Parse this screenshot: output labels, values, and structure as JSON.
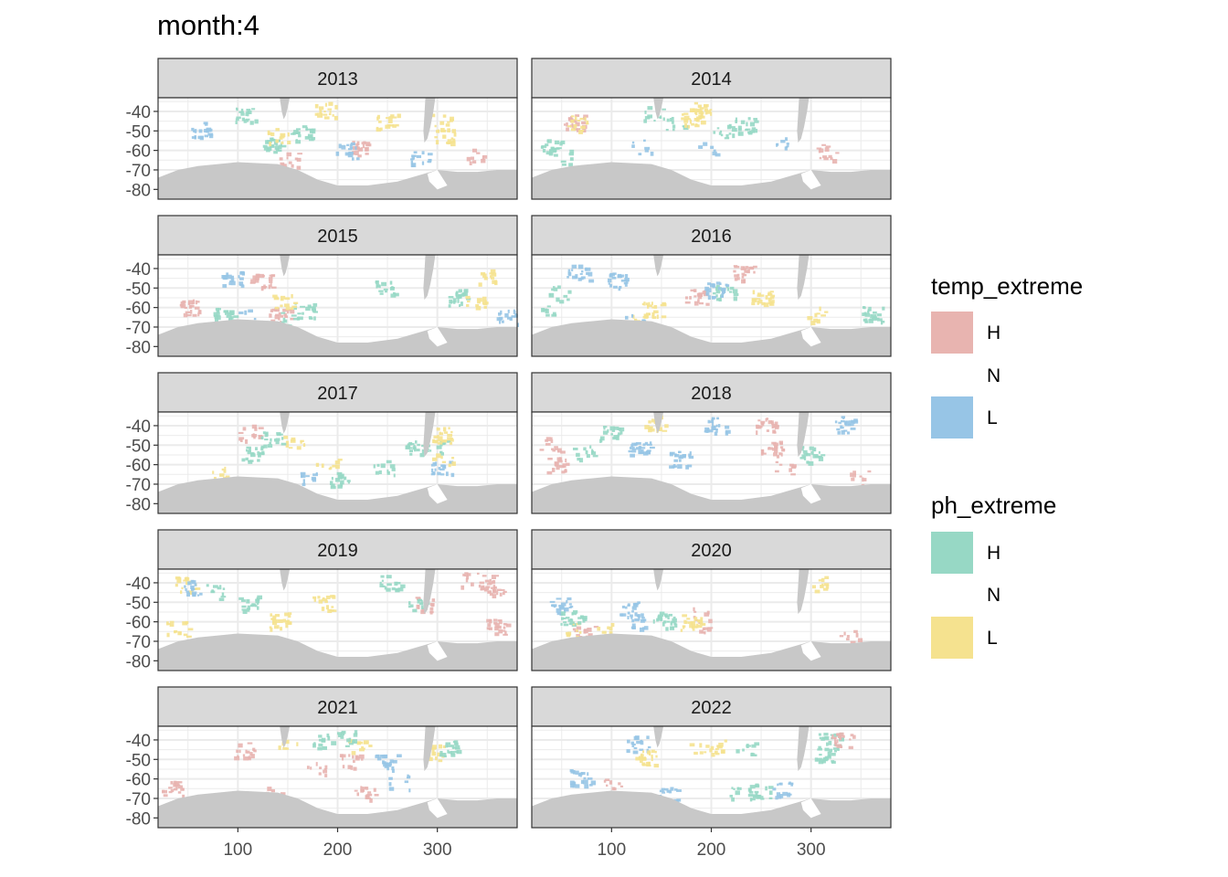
{
  "title": "month:4",
  "chart_data": {
    "type": "heatmap",
    "description_of_marks": "faceted maps of Southern Ocean; colored tiles mark temp/pH extremes",
    "facets": [
      "2013",
      "2014",
      "2015",
      "2016",
      "2017",
      "2018",
      "2019",
      "2020",
      "2021",
      "2022"
    ],
    "x_ticks": [
      "100",
      "200",
      "300"
    ],
    "x_tick_values": [
      100,
      200,
      300
    ],
    "y_ticks": [
      "-40",
      "-50",
      "-60",
      "-70",
      "-80"
    ],
    "y_tick_values": [
      -40,
      -50,
      -60,
      -70,
      -80
    ],
    "xlim": [
      20,
      380
    ],
    "ylim": [
      -85,
      -33
    ],
    "grid": true,
    "legend_position": "right",
    "colors": {
      "temp_H": "#e8b4b0",
      "temp_L": "#97c5e6",
      "ph_H": "#97d8c5",
      "ph_L": "#f5e28f",
      "land": "#c8c8c8",
      "strip": "#d9d9d9"
    },
    "legends": [
      {
        "title": "temp_extreme",
        "entries": [
          {
            "label": "H",
            "color": "#e8b4b0"
          },
          {
            "label": "N",
            "color": "none"
          },
          {
            "label": "L",
            "color": "#97c5e6"
          }
        ]
      },
      {
        "title": "ph_extreme",
        "entries": [
          {
            "label": "H",
            "color": "#97d8c5"
          },
          {
            "label": "N",
            "color": "none"
          },
          {
            "label": "L",
            "color": "#f5e28f"
          }
        ]
      }
    ]
  }
}
